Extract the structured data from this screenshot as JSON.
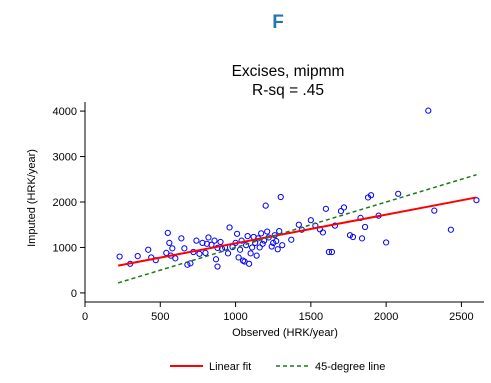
{
  "panel_label": "F",
  "colors": {
    "panel_label": "#1f77b4",
    "scatter": "#0000ff",
    "linear_fit": "#ff0000",
    "diagonal": "#1a7a1a",
    "axis": "#000000",
    "text": "#000000"
  },
  "chart_data": {
    "type": "scatter",
    "title": "Excises, mipmm",
    "subtitle": "R-sq = .45",
    "xlabel": "Observed (HRK/year)",
    "ylabel": "Imputed (HRK/year)",
    "xlim": [
      0,
      2650
    ],
    "ylim": [
      -200,
      4200
    ],
    "xticks": [
      0,
      500,
      1000,
      1500,
      2000,
      2500
    ],
    "yticks": [
      0,
      1000,
      2000,
      3000,
      4000
    ],
    "grid": false,
    "legend_position": "bottom-center",
    "points": [
      [
        230,
        800
      ],
      [
        300,
        640
      ],
      [
        350,
        810
      ],
      [
        420,
        950
      ],
      [
        440,
        780
      ],
      [
        470,
        720
      ],
      [
        540,
        880
      ],
      [
        550,
        1320
      ],
      [
        560,
        1100
      ],
      [
        570,
        820
      ],
      [
        580,
        980
      ],
      [
        600,
        760
      ],
      [
        640,
        1200
      ],
      [
        660,
        980
      ],
      [
        680,
        620
      ],
      [
        700,
        650
      ],
      [
        720,
        900
      ],
      [
        740,
        1150
      ],
      [
        760,
        860
      ],
      [
        780,
        1100
      ],
      [
        800,
        880
      ],
      [
        810,
        1080
      ],
      [
        820,
        1220
      ],
      [
        840,
        1060
      ],
      [
        860,
        1150
      ],
      [
        870,
        740
      ],
      [
        880,
        990
      ],
      [
        880,
        580
      ],
      [
        900,
        1120
      ],
      [
        910,
        970
      ],
      [
        930,
        1000
      ],
      [
        950,
        870
      ],
      [
        960,
        1440
      ],
      [
        980,
        1010
      ],
      [
        1000,
        1100
      ],
      [
        1010,
        1300
      ],
      [
        1020,
        780
      ],
      [
        1030,
        950
      ],
      [
        1040,
        1150
      ],
      [
        1050,
        710
      ],
      [
        1060,
        690
      ],
      [
        1070,
        1050
      ],
      [
        1080,
        1250
      ],
      [
        1090,
        640
      ],
      [
        1100,
        870
      ],
      [
        1110,
        1000
      ],
      [
        1120,
        1230
      ],
      [
        1130,
        1100
      ],
      [
        1140,
        820
      ],
      [
        1150,
        1200
      ],
      [
        1160,
        1000
      ],
      [
        1170,
        1310
      ],
      [
        1180,
        1080
      ],
      [
        1190,
        1150
      ],
      [
        1200,
        1920
      ],
      [
        1210,
        1350
      ],
      [
        1220,
        1220
      ],
      [
        1240,
        1020
      ],
      [
        1250,
        1100
      ],
      [
        1260,
        1270
      ],
      [
        1270,
        1140
      ],
      [
        1280,
        960
      ],
      [
        1290,
        1360
      ],
      [
        1300,
        2110
      ],
      [
        1310,
        1050
      ],
      [
        1370,
        1170
      ],
      [
        1420,
        1500
      ],
      [
        1440,
        1390
      ],
      [
        1500,
        1600
      ],
      [
        1530,
        1480
      ],
      [
        1560,
        1400
      ],
      [
        1580,
        1330
      ],
      [
        1600,
        1850
      ],
      [
        1620,
        900
      ],
      [
        1640,
        900
      ],
      [
        1660,
        1480
      ],
      [
        1700,
        1800
      ],
      [
        1720,
        1880
      ],
      [
        1760,
        1270
      ],
      [
        1780,
        1230
      ],
      [
        1830,
        1650
      ],
      [
        1840,
        1200
      ],
      [
        1860,
        1450
      ],
      [
        1880,
        2100
      ],
      [
        1900,
        2150
      ],
      [
        1950,
        1700
      ],
      [
        2000,
        1110
      ],
      [
        2080,
        2180
      ],
      [
        2280,
        4010
      ],
      [
        2320,
        1810
      ],
      [
        2430,
        1390
      ],
      [
        2600,
        2040
      ]
    ],
    "series": [
      {
        "name": "Linear fit",
        "style": "solid",
        "x": [
          220,
          2600
        ],
        "y": [
          600,
          2100
        ]
      },
      {
        "name": "45-degree line",
        "style": "dashed",
        "x": [
          220,
          2600
        ],
        "y": [
          220,
          2600
        ]
      }
    ]
  }
}
